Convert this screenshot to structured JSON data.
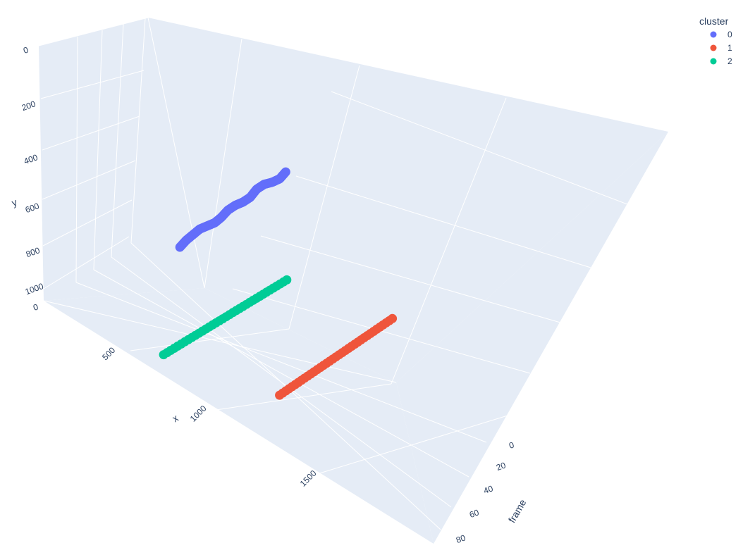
{
  "chart_data": {
    "type": "scatter",
    "x_axis": {
      "title": "x",
      "ticks": [
        "500",
        "1000",
        "1500"
      ]
    },
    "y_axis": {
      "title": "y",
      "ticks": [
        "0",
        "200",
        "400",
        "600",
        "800",
        "1000"
      ]
    },
    "z_axis": {
      "title": "frame",
      "ticks": [
        "0",
        "20",
        "40",
        "60",
        "80"
      ]
    },
    "legend": {
      "title": "cluster",
      "placement": "top-right",
      "items": [
        {
          "label": "0",
          "color": "#636efa"
        },
        {
          "label": "1",
          "color": "#ef553b"
        },
        {
          "label": "2",
          "color": "#00cc96"
        }
      ]
    },
    "series": [
      {
        "name": "0",
        "color": "#636efa",
        "points": [
          [
            690,
            745,
            22
          ],
          [
            700,
            730,
            25
          ],
          [
            710,
            720,
            28
          ],
          [
            720,
            710,
            31
          ],
          [
            735,
            705,
            34
          ],
          [
            750,
            700,
            37
          ],
          [
            760,
            690,
            40
          ],
          [
            770,
            675,
            43
          ],
          [
            785,
            665,
            46
          ],
          [
            800,
            660,
            49
          ],
          [
            815,
            650,
            52
          ],
          [
            825,
            632,
            55
          ],
          [
            840,
            622,
            58
          ],
          [
            860,
            618,
            61
          ],
          [
            875,
            612,
            64
          ],
          [
            880,
            600,
            67
          ]
        ]
      },
      {
        "name": "1",
        "color": "#ef553b",
        "points": [
          [
            1340,
            930,
            22
          ],
          [
            1380,
            900,
            40
          ],
          [
            1420,
            870,
            58
          ],
          [
            1460,
            840,
            76
          ]
        ]
      },
      {
        "name": "2",
        "color": "#00cc96",
        "points": [
          [
            780,
            965,
            3
          ],
          [
            840,
            930,
            22
          ],
          [
            900,
            895,
            40
          ],
          [
            960,
            860,
            58
          ]
        ]
      }
    ]
  }
}
